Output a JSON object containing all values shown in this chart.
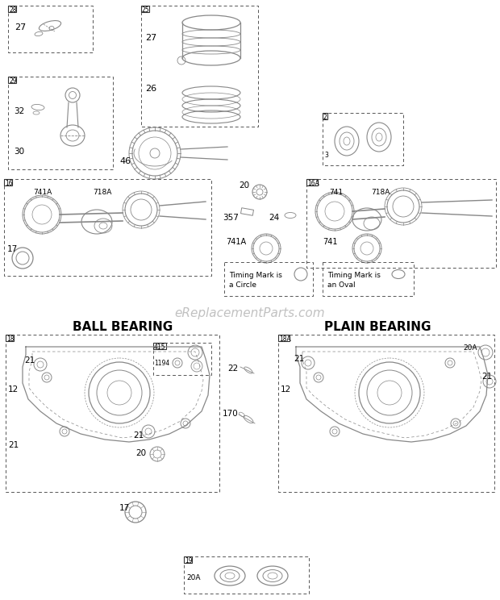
{
  "bg_color": "#ffffff",
  "line_color": "#888888",
  "dark_line": "#555555",
  "text_color": "#000000",
  "watermark_color": "#bbbbbb",
  "watermark": "eReplacementParts.com",
  "ball_bearing_title": "BALL BEARING",
  "plain_bearing_title": "PLAIN BEARING",
  "timing_circle_text": "Timing Mark is\na Circle",
  "timing_oval_text": "Timing Mark is\nan Oval"
}
